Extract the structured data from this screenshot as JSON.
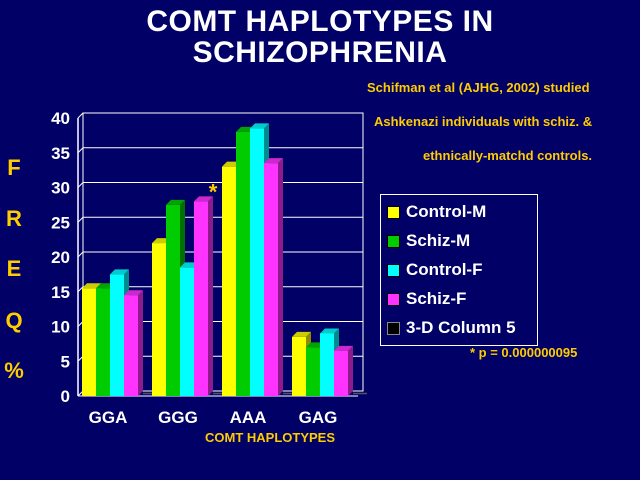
{
  "title_line1": "COMT HAPLOTYPES IN",
  "title_line2": "SCHIZOPHRENIA",
  "notes": [
    "Schifman et al (AJHG, 2002) studied",
    "Ashkenazi individuals with schiz. &",
    "ethnically-matchd controls."
  ],
  "ylabel_letters": [
    "F",
    "R",
    "E",
    "Q",
    "%"
  ],
  "significance_marker": "*",
  "pvalue_note": "* p = 0.000000095",
  "colors": {
    "background": "#000066",
    "Control-M": "#ffff00",
    "Schiz-M": "#00cc00",
    "Control-F": "#00ffff",
    "Schiz-F": "#ff33ff",
    "3-D Column 5": "#000000"
  },
  "chart_data": {
    "type": "bar",
    "categories": [
      "GGA",
      "GGG",
      "AAA",
      "GAG"
    ],
    "series": [
      {
        "name": "Control-M",
        "values": [
          15.5,
          22,
          33,
          8.5
        ]
      },
      {
        "name": "Schiz-M",
        "values": [
          15.5,
          27.5,
          38,
          7
        ]
      },
      {
        "name": "Control-F",
        "values": [
          17.5,
          18.5,
          38.5,
          9
        ]
      },
      {
        "name": "Schiz-F",
        "values": [
          14.5,
          28,
          33.5,
          6.5
        ]
      },
      {
        "name": "3-D Column 5",
        "values": [
          0,
          0,
          0,
          0
        ]
      }
    ],
    "xlabel": "COMT HAPLOTYPES",
    "ylabel": "FREQ %",
    "ylim": [
      0,
      40
    ],
    "yticks": [
      0,
      5,
      10,
      15,
      20,
      25,
      30,
      35,
      40
    ],
    "grid": true,
    "legend": "right",
    "annotation": {
      "category": "GGG",
      "series": "Schiz-F",
      "text": "*"
    }
  }
}
